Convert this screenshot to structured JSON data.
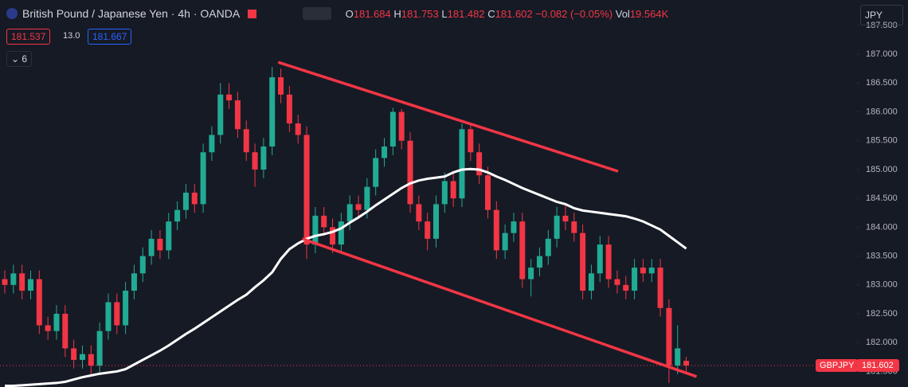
{
  "header": {
    "symbol": "British Pound / Japanese Yen · 4h · OANDA",
    "o_label": "O",
    "h_label": "H",
    "l_label": "L",
    "c_label": "C",
    "change": "−0.082 (−0.05%)",
    "vol_label": "Vol",
    "vol": "19.564K",
    "bid": 181.537,
    "spread": "13.0",
    "ask": 181.667,
    "indicators": "6",
    "currency": "JPY",
    "ticker": "GBPJPY"
  },
  "chart_data": {
    "type": "candlestick",
    "open": [
      183.1,
      183.0,
      183.2,
      182.9,
      183.1,
      182.3,
      182.2,
      182.5,
      181.9,
      181.7,
      181.8,
      181.6,
      182.2,
      182.7,
      182.3,
      182.9,
      183.2,
      183.5,
      183.8,
      183.6,
      184.1,
      184.3,
      184.6,
      184.4,
      185.3,
      185.6,
      186.3,
      186.2,
      185.7,
      185.3,
      185.0,
      185.4,
      186.6,
      186.3,
      185.8,
      185.6,
      183.7,
      184.2,
      184.0,
      183.7,
      184.1,
      184.4,
      184.3,
      184.7,
      185.2,
      185.4,
      186.0,
      185.5,
      184.4,
      184.1,
      183.8,
      184.4,
      184.8,
      184.5,
      185.7,
      185.3,
      184.9,
      184.3,
      183.6,
      183.9,
      184.1,
      183.1,
      183.3,
      183.5,
      183.8,
      184.2,
      184.1,
      183.9,
      182.9,
      183.2,
      183.7,
      183.1,
      183.0,
      182.9,
      183.3,
      183.2,
      183.3,
      182.6,
      181.6,
      181.684
    ],
    "high": [
      183.25,
      183.35,
      183.35,
      183.25,
      183.25,
      182.45,
      182.65,
      182.65,
      182.05,
      181.95,
      181.95,
      182.35,
      182.85,
      182.85,
      183.05,
      183.35,
      183.65,
      183.95,
      183.95,
      184.25,
      184.45,
      184.75,
      184.75,
      185.45,
      185.75,
      186.5,
      186.5,
      186.35,
      185.85,
      185.45,
      185.55,
      186.78,
      186.75,
      186.45,
      185.95,
      185.75,
      184.35,
      184.35,
      184.15,
      184.25,
      184.55,
      184.55,
      184.85,
      185.35,
      185.55,
      186.07,
      186.05,
      185.65,
      184.55,
      184.25,
      184.55,
      184.95,
      184.95,
      185.8,
      185.8,
      185.45,
      185.05,
      184.45,
      184.05,
      184.25,
      184.25,
      183.45,
      183.65,
      183.95,
      184.35,
      184.4,
      184.25,
      184.05,
      183.35,
      183.85,
      183.85,
      183.25,
      183.15,
      183.45,
      183.45,
      183.45,
      183.45,
      182.75,
      182.3,
      181.753
    ],
    "low": [
      182.85,
      182.85,
      182.75,
      182.75,
      182.15,
      182.05,
      182.05,
      181.75,
      181.55,
      181.55,
      181.45,
      181.45,
      182.05,
      182.15,
      182.15,
      182.75,
      183.05,
      183.35,
      183.45,
      183.45,
      183.95,
      184.15,
      184.25,
      184.25,
      185.15,
      185.45,
      186.05,
      185.55,
      185.15,
      184.7,
      184.85,
      185.25,
      186.15,
      185.65,
      185.45,
      183.45,
      183.55,
      183.85,
      183.55,
      183.55,
      183.95,
      184.15,
      184.15,
      184.55,
      185.05,
      185.25,
      185.35,
      184.25,
      183.95,
      183.6,
      183.65,
      184.25,
      184.35,
      184.35,
      185.15,
      184.75,
      184.15,
      183.45,
      183.45,
      183.75,
      182.95,
      182.8,
      183.15,
      183.35,
      183.65,
      183.95,
      183.75,
      182.75,
      182.75,
      183.05,
      182.95,
      182.85,
      182.75,
      182.75,
      183.05,
      183.05,
      182.45,
      181.3,
      181.45,
      181.482
    ],
    "close": [
      183.0,
      183.2,
      182.9,
      183.1,
      182.3,
      182.2,
      182.5,
      181.9,
      181.7,
      181.8,
      181.6,
      182.2,
      182.7,
      182.3,
      182.9,
      183.2,
      183.5,
      183.8,
      183.6,
      184.1,
      184.3,
      184.6,
      184.4,
      185.3,
      185.6,
      186.3,
      186.2,
      185.7,
      185.3,
      185.0,
      185.4,
      186.6,
      186.3,
      185.8,
      185.6,
      183.7,
      184.2,
      184.0,
      183.7,
      184.1,
      184.4,
      184.3,
      184.7,
      185.2,
      185.4,
      186.0,
      185.5,
      184.4,
      184.1,
      183.8,
      184.4,
      184.8,
      184.5,
      185.7,
      185.3,
      184.9,
      184.3,
      183.6,
      183.9,
      184.1,
      183.1,
      183.3,
      183.5,
      183.8,
      184.2,
      184.1,
      183.9,
      182.9,
      183.2,
      183.7,
      183.1,
      183.0,
      182.9,
      183.3,
      183.2,
      183.3,
      182.6,
      181.6,
      181.9,
      181.602
    ],
    "up_color": "#22ab94",
    "down_color": "#f23645",
    "moving_average": {
      "color": "#ffffff",
      "values": [
        181.25,
        181.25,
        181.26,
        181.27,
        181.28,
        181.29,
        181.3,
        181.32,
        181.36,
        181.4,
        181.43,
        181.46,
        181.48,
        181.5,
        181.54,
        181.62,
        181.7,
        181.78,
        181.86,
        181.95,
        182.05,
        182.15,
        182.24,
        182.34,
        182.44,
        182.54,
        182.64,
        182.74,
        182.83,
        182.96,
        183.08,
        183.22,
        183.45,
        183.62,
        183.72,
        183.8,
        183.85,
        183.88,
        183.92,
        183.98,
        184.08,
        184.17,
        184.27,
        184.38,
        184.48,
        184.58,
        184.68,
        184.76,
        184.81,
        184.84,
        184.86,
        184.88,
        184.95,
        185.0,
        185.01,
        185.0,
        184.95,
        184.88,
        184.82,
        184.75,
        184.68,
        184.62,
        184.56,
        184.5,
        184.44,
        184.4,
        184.33,
        184.29,
        184.27,
        184.25,
        184.23,
        184.21,
        184.19,
        184.15,
        184.1,
        184.03,
        183.96,
        183.85,
        183.74,
        183.63
      ]
    },
    "trendlines": [
      {
        "color": "#f23645",
        "x": [
          31.7,
          71.1
        ],
        "y": [
          186.86,
          184.97
        ]
      },
      {
        "color": "#f23645",
        "x": [
          34.5,
          80.2
        ],
        "y": [
          183.8,
          181.41
        ]
      }
    ],
    "ylim": [
      181.23,
      187.94
    ],
    "yticks": [
      {
        "value": 181.5,
        "label": "181.500"
      },
      {
        "value": 182,
        "label": "182.000"
      },
      {
        "value": 182.5,
        "label": "182.500"
      },
      {
        "value": 183,
        "label": "183.000"
      },
      {
        "value": 183.5,
        "label": "183.500"
      },
      {
        "value": 184,
        "label": "184.000"
      },
      {
        "value": 184.5,
        "label": "184.500"
      },
      {
        "value": 185,
        "label": "185.000"
      },
      {
        "value": 185.5,
        "label": "185.500"
      },
      {
        "value": 186,
        "label": "186.000"
      },
      {
        "value": 186.5,
        "label": "186.500"
      },
      {
        "value": 187,
        "label": "187.000"
      },
      {
        "value": 187.5,
        "label": "187.500"
      }
    ]
  }
}
